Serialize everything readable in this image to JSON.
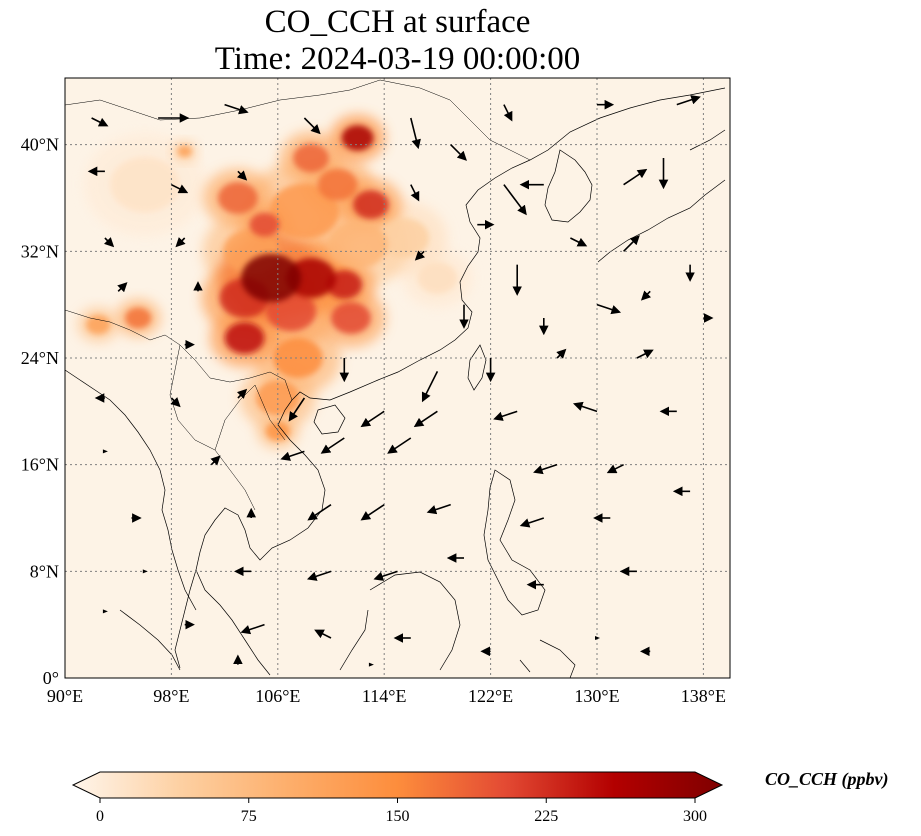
{
  "title": {
    "line1": "CO_CCH at surface",
    "line2": "Time: 2024-03-19 00:00:00"
  },
  "map": {
    "projection": "PlateCarree",
    "lon_range": [
      90,
      140
    ],
    "lat_range": [
      0,
      45
    ],
    "lon_ticks": [
      {
        "value": 90,
        "label": "90°E"
      },
      {
        "value": 98,
        "label": "98°E"
      },
      {
        "value": 106,
        "label": "106°E"
      },
      {
        "value": 114,
        "label": "114°E"
      },
      {
        "value": 122,
        "label": "122°E"
      },
      {
        "value": 130,
        "label": "130°E"
      },
      {
        "value": 138,
        "label": "138°E"
      }
    ],
    "lat_ticks": [
      {
        "value": 0,
        "label": "0°"
      },
      {
        "value": 8,
        "label": "8°N"
      },
      {
        "value": 16,
        "label": "16°N"
      },
      {
        "value": 24,
        "label": "24°N"
      },
      {
        "value": 32,
        "label": "32°N"
      },
      {
        "value": 40,
        "label": "40°N"
      }
    ],
    "gridlines": true,
    "coastlines": true,
    "borders": true,
    "field": "CO_CCH",
    "plumes": [
      {
        "lon": 105.5,
        "lat": 30.0,
        "r": 3.0,
        "value": 300
      },
      {
        "lon": 108.5,
        "lat": 30.0,
        "r": 2.5,
        "value": 260
      },
      {
        "lon": 103.5,
        "lat": 28.5,
        "r": 2.5,
        "value": 220
      },
      {
        "lon": 111.0,
        "lat": 29.5,
        "r": 1.8,
        "value": 230
      },
      {
        "lon": 111.5,
        "lat": 27.0,
        "r": 2.0,
        "value": 200
      },
      {
        "lon": 103.5,
        "lat": 25.5,
        "r": 2.0,
        "value": 240
      },
      {
        "lon": 107.0,
        "lat": 27.5,
        "r": 2.5,
        "value": 200
      },
      {
        "lon": 107.5,
        "lat": 24.0,
        "r": 2.5,
        "value": 150
      },
      {
        "lon": 106.0,
        "lat": 21.0,
        "r": 2.2,
        "value": 130
      },
      {
        "lon": 106.0,
        "lat": 18.5,
        "r": 1.2,
        "value": 140
      },
      {
        "lon": 104.0,
        "lat": 32.0,
        "r": 2.8,
        "value": 120
      },
      {
        "lon": 108.0,
        "lat": 35.0,
        "r": 3.5,
        "value": 130
      },
      {
        "lon": 103.0,
        "lat": 36.0,
        "r": 2.0,
        "value": 180
      },
      {
        "lon": 105.0,
        "lat": 34.0,
        "r": 1.5,
        "value": 200
      },
      {
        "lon": 108.5,
        "lat": 39.0,
        "r": 1.8,
        "value": 180
      },
      {
        "lon": 112.0,
        "lat": 40.5,
        "r": 1.6,
        "value": 260
      },
      {
        "lon": 113.0,
        "lat": 35.5,
        "r": 1.8,
        "value": 220
      },
      {
        "lon": 110.5,
        "lat": 37.0,
        "r": 2.0,
        "value": 170
      },
      {
        "lon": 95.5,
        "lat": 27.0,
        "r": 1.3,
        "value": 170
      },
      {
        "lon": 92.5,
        "lat": 26.5,
        "r": 1.2,
        "value": 120
      },
      {
        "lon": 99.0,
        "lat": 39.5,
        "r": 0.7,
        "value": 120
      },
      {
        "lon": 112.0,
        "lat": 32.5,
        "r": 3.0,
        "value": 90
      },
      {
        "lon": 115.5,
        "lat": 33.0,
        "r": 2.5,
        "value": 50
      },
      {
        "lon": 96.0,
        "lat": 37.0,
        "r": 3.5,
        "value": 25
      },
      {
        "lon": 118.0,
        "lat": 30.0,
        "r": 2.0,
        "value": 30
      }
    ],
    "wind_vectors": [
      {
        "lon": 92,
        "lat": 42,
        "u": 2,
        "v": -1
      },
      {
        "lon": 97,
        "lat": 42,
        "u": 4,
        "v": 0
      },
      {
        "lon": 102,
        "lat": 43,
        "u": 3,
        "v": -1
      },
      {
        "lon": 108,
        "lat": 42,
        "u": 2,
        "v": -2
      },
      {
        "lon": 116,
        "lat": 42,
        "u": 1,
        "v": -4
      },
      {
        "lon": 119,
        "lat": 40,
        "u": 2,
        "v": -2
      },
      {
        "lon": 123,
        "lat": 43,
        "u": 1,
        "v": -2
      },
      {
        "lon": 130,
        "lat": 43,
        "u": 2,
        "v": 0
      },
      {
        "lon": 136,
        "lat": 43,
        "u": 3,
        "v": 1
      },
      {
        "lon": 93,
        "lat": 38,
        "u": -2,
        "v": 0
      },
      {
        "lon": 98,
        "lat": 37,
        "u": 2,
        "v": -1
      },
      {
        "lon": 103,
        "lat": 38,
        "u": 1,
        "v": -1
      },
      {
        "lon": 116,
        "lat": 37,
        "u": 1,
        "v": -2
      },
      {
        "lon": 123,
        "lat": 37,
        "u": 3,
        "v": -4
      },
      {
        "lon": 126,
        "lat": 37,
        "u": -3,
        "v": 0
      },
      {
        "lon": 132,
        "lat": 37,
        "u": 3,
        "v": 2
      },
      {
        "lon": 135,
        "lat": 39,
        "u": 0,
        "v": -4
      },
      {
        "lon": 93,
        "lat": 33,
        "u": 1,
        "v": -1
      },
      {
        "lon": 99,
        "lat": 33,
        "u": -1,
        "v": -1
      },
      {
        "lon": 117,
        "lat": 32,
        "u": -1,
        "v": -1
      },
      {
        "lon": 121,
        "lat": 34,
        "u": 2,
        "v": 0
      },
      {
        "lon": 124,
        "lat": 31,
        "u": 0,
        "v": -4
      },
      {
        "lon": 128,
        "lat": 33,
        "u": 2,
        "v": -1
      },
      {
        "lon": 132,
        "lat": 32,
        "u": 2,
        "v": 2
      },
      {
        "lon": 137,
        "lat": 31,
        "u": 0,
        "v": -2
      },
      {
        "lon": 94,
        "lat": 29,
        "u": 1,
        "v": 1
      },
      {
        "lon": 100,
        "lat": 29,
        "u": 0,
        "v": 1
      },
      {
        "lon": 120,
        "lat": 28,
        "u": 0,
        "v": -3
      },
      {
        "lon": 126,
        "lat": 27,
        "u": 0,
        "v": -2
      },
      {
        "lon": 130,
        "lat": 28,
        "u": 3,
        "v": -1
      },
      {
        "lon": 134,
        "lat": 29,
        "u": -1,
        "v": -1
      },
      {
        "lon": 138,
        "lat": 27,
        "u": 1,
        "v": 0
      },
      {
        "lon": 99,
        "lat": 25,
        "u": 1,
        "v": 0
      },
      {
        "lon": 111,
        "lat": 24,
        "u": 0,
        "v": -3
      },
      {
        "lon": 118,
        "lat": 23,
        "u": -2,
        "v": -4
      },
      {
        "lon": 122,
        "lat": 24,
        "u": 0,
        "v": -3
      },
      {
        "lon": 127,
        "lat": 24,
        "u": 1,
        "v": 1
      },
      {
        "lon": 133,
        "lat": 24,
        "u": 2,
        "v": 1
      },
      {
        "lon": 93,
        "lat": 21,
        "u": -1,
        "v": 0
      },
      {
        "lon": 98,
        "lat": 21,
        "u": 1,
        "v": -1
      },
      {
        "lon": 103,
        "lat": 21,
        "u": 1,
        "v": 1
      },
      {
        "lon": 108,
        "lat": 21,
        "u": -2,
        "v": -3
      },
      {
        "lon": 114,
        "lat": 20,
        "u": -3,
        "v": -2
      },
      {
        "lon": 118,
        "lat": 20,
        "u": -3,
        "v": -2
      },
      {
        "lon": 124,
        "lat": 20,
        "u": -3,
        "v": -1
      },
      {
        "lon": 130,
        "lat": 20,
        "u": -3,
        "v": 1
      },
      {
        "lon": 136,
        "lat": 20,
        "u": -2,
        "v": 0
      },
      {
        "lon": 93,
        "lat": 17,
        "u": 0,
        "v": 0
      },
      {
        "lon": 101,
        "lat": 16,
        "u": 1,
        "v": 1
      },
      {
        "lon": 108,
        "lat": 17,
        "u": -3,
        "v": -1
      },
      {
        "lon": 111,
        "lat": 18,
        "u": -3,
        "v": -2
      },
      {
        "lon": 116,
        "lat": 18,
        "u": -3,
        "v": -2
      },
      {
        "lon": 127,
        "lat": 16,
        "u": -3,
        "v": -1
      },
      {
        "lon": 132,
        "lat": 16,
        "u": -2,
        "v": -1
      },
      {
        "lon": 137,
        "lat": 14,
        "u": -2,
        "v": 0
      },
      {
        "lon": 95,
        "lat": 12,
        "u": 1,
        "v": 0
      },
      {
        "lon": 104,
        "lat": 12,
        "u": 0,
        "v": 1
      },
      {
        "lon": 110,
        "lat": 13,
        "u": -3,
        "v": -2
      },
      {
        "lon": 114,
        "lat": 13,
        "u": -3,
        "v": -2
      },
      {
        "lon": 119,
        "lat": 13,
        "u": -3,
        "v": -1
      },
      {
        "lon": 126,
        "lat": 12,
        "u": -3,
        "v": -1
      },
      {
        "lon": 131,
        "lat": 12,
        "u": -2,
        "v": 0
      },
      {
        "lon": 96,
        "lat": 8,
        "u": 0,
        "v": 0
      },
      {
        "lon": 104,
        "lat": 8,
        "u": -2,
        "v": 0
      },
      {
        "lon": 110,
        "lat": 8,
        "u": -3,
        "v": -1
      },
      {
        "lon": 115,
        "lat": 8,
        "u": -3,
        "v": -1
      },
      {
        "lon": 120,
        "lat": 9,
        "u": -2,
        "v": 0
      },
      {
        "lon": 126,
        "lat": 7,
        "u": -2,
        "v": 0
      },
      {
        "lon": 133,
        "lat": 8,
        "u": -2,
        "v": 0
      },
      {
        "lon": 93,
        "lat": 5,
        "u": 0,
        "v": 0
      },
      {
        "lon": 99,
        "lat": 4,
        "u": 1,
        "v": 0
      },
      {
        "lon": 105,
        "lat": 4,
        "u": -3,
        "v": -1
      },
      {
        "lon": 110,
        "lat": 3,
        "u": -2,
        "v": 1
      },
      {
        "lon": 116,
        "lat": 3,
        "u": -2,
        "v": 0
      },
      {
        "lon": 122,
        "lat": 2,
        "u": -1,
        "v": 0
      },
      {
        "lon": 130,
        "lat": 3,
        "u": 0,
        "v": 0
      },
      {
        "lon": 134,
        "lat": 2,
        "u": -1,
        "v": 0
      },
      {
        "lon": 103,
        "lat": 1,
        "u": 0,
        "v": 1
      },
      {
        "lon": 113,
        "lat": 1,
        "u": 0,
        "v": 0
      }
    ]
  },
  "colorbar": {
    "label": "CO_CCH (ppbv)",
    "min": 0,
    "max": 300,
    "extend": "both",
    "ticks": [
      {
        "value": 0,
        "label": "0"
      },
      {
        "value": 75,
        "label": "75"
      },
      {
        "value": 150,
        "label": "150"
      },
      {
        "value": 225,
        "label": "225"
      },
      {
        "value": 300,
        "label": "300"
      }
    ],
    "colormap": [
      "#fff5eb",
      "#fdd0a2",
      "#fdae6b",
      "#fd8d3c",
      "#e34a33",
      "#b30000",
      "#7f0000"
    ]
  },
  "colors": {
    "land_background": "#fdf3e6",
    "ocean_background": "#fff7ee",
    "grid": "#808080",
    "coast": "#000000"
  }
}
